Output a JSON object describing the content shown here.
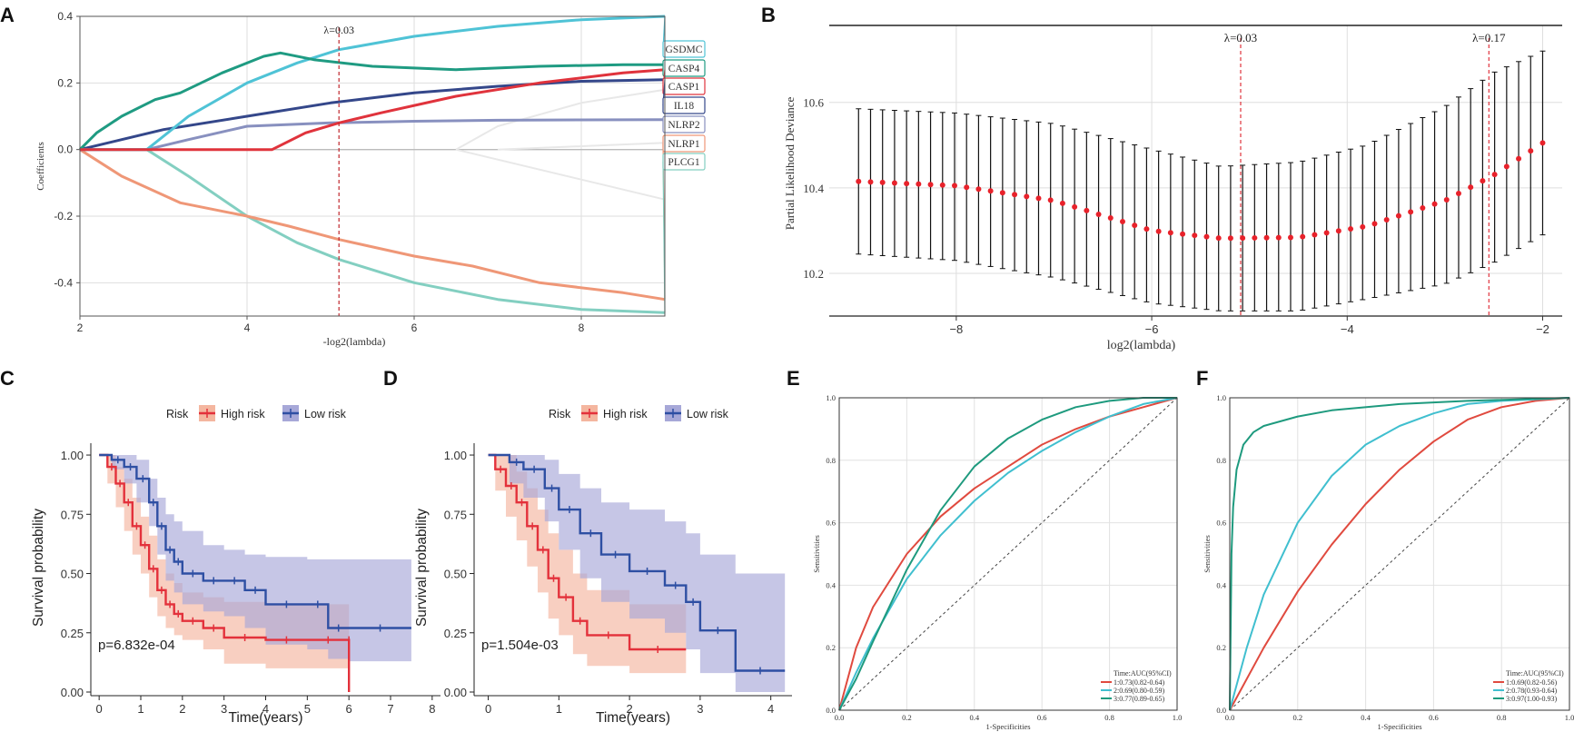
{
  "chart_data": [
    {
      "panel": "A",
      "type": "line",
      "title": "",
      "xlabel": "-log2(lambda)",
      "ylabel": "Coefficients",
      "xlim": [
        2,
        9
      ],
      "ylim": [
        -0.5,
        0.4
      ],
      "xticks": [
        "2",
        "4",
        "6",
        "8"
      ],
      "yticks": [
        "0.4",
        "0.2",
        "0.0",
        "-0.2",
        "-0.4"
      ],
      "vline": {
        "x": 5.1,
        "label": "λ=0.03"
      },
      "series": [
        {
          "name": "GSDMC",
          "color": "#4fc3d6",
          "x": [
            2,
            2.8,
            3.3,
            4.0,
            4.6,
            5.1,
            6.0,
            7.0,
            8.0,
            9.0
          ],
          "values": [
            0.0,
            0.0,
            0.1,
            0.2,
            0.26,
            0.3,
            0.34,
            0.37,
            0.39,
            0.4
          ]
        },
        {
          "name": "CASP4",
          "color": "#1f9b82",
          "x": [
            2,
            2.2,
            2.5,
            2.9,
            3.2,
            3.7,
            4.2,
            4.4,
            4.8,
            5.5,
            6.5,
            7.5,
            8.5,
            9.0
          ],
          "values": [
            0.0,
            0.05,
            0.1,
            0.15,
            0.17,
            0.23,
            0.28,
            0.29,
            0.27,
            0.25,
            0.24,
            0.25,
            0.255,
            0.255
          ]
        },
        {
          "name": "CASP1",
          "color": "#e0333c",
          "x": [
            2,
            3.0,
            4.0,
            4.3,
            4.7,
            5.1,
            5.6,
            6.5,
            7.5,
            8.5,
            9.0
          ],
          "values": [
            0.0,
            0.0,
            0.0,
            0.0,
            0.05,
            0.08,
            0.11,
            0.16,
            0.2,
            0.23,
            0.24
          ]
        },
        {
          "name": "IL18",
          "color": "#34478a",
          "x": [
            2,
            2.5,
            3.0,
            4.0,
            5.0,
            6.0,
            7.0,
            8.0,
            9.0
          ],
          "values": [
            0.0,
            0.03,
            0.06,
            0.1,
            0.14,
            0.17,
            0.19,
            0.205,
            0.21
          ]
        },
        {
          "name": "NLRP2",
          "color": "#8890bf",
          "x": [
            2,
            2.8,
            3.3,
            4.0,
            5.0,
            6.0,
            7.0,
            8.0,
            9.0
          ],
          "values": [
            0.0,
            0.0,
            0.03,
            0.07,
            0.08,
            0.085,
            0.088,
            0.089,
            0.09
          ]
        },
        {
          "name": "NLRP1",
          "color": "#ef9777",
          "x": [
            2,
            2.5,
            3.2,
            4.0,
            4.5,
            5.1,
            6.0,
            6.7,
            7.5,
            8.5,
            9.0
          ],
          "values": [
            0.0,
            -0.08,
            -0.16,
            -0.2,
            -0.23,
            -0.27,
            -0.32,
            -0.35,
            -0.4,
            -0.43,
            -0.45
          ]
        },
        {
          "name": "PLCG1",
          "color": "#83cfc1",
          "x": [
            2,
            2.8,
            3.3,
            4.0,
            4.6,
            5.1,
            6.0,
            7.0,
            8.0,
            9.0
          ],
          "values": [
            0.0,
            0.0,
            -0.08,
            -0.2,
            -0.28,
            -0.33,
            -0.4,
            -0.45,
            -0.48,
            -0.49
          ]
        },
        {
          "name": "",
          "color": "#e8e8e8",
          "x": [
            6.5,
            7.0,
            8.0,
            9.0
          ],
          "values": [
            0.0,
            0.07,
            0.14,
            0.18
          ]
        },
        {
          "name": "",
          "color": "#e8e8e8",
          "x": [
            6.5,
            7.0,
            8.0,
            9.0
          ],
          "values": [
            0.0,
            -0.03,
            -0.09,
            -0.15
          ]
        },
        {
          "name": "",
          "color": "#e8e8e8",
          "x": [
            7.0,
            8.0,
            9.0
          ],
          "values": [
            0.0,
            0.01,
            0.02
          ]
        }
      ],
      "labels": [
        {
          "text": "GSDMC",
          "color": "#4fc3d6"
        },
        {
          "text": "CASP4",
          "color": "#1f9b82"
        },
        {
          "text": "CASP1",
          "color": "#e0333c"
        },
        {
          "text": "IL18",
          "color": "#34478a"
        },
        {
          "text": "NLRP2",
          "color": "#8890bf"
        },
        {
          "text": "NLRP1",
          "color": "#ef9777"
        },
        {
          "text": "PLCG1",
          "color": "#83cfc1"
        }
      ]
    },
    {
      "panel": "B",
      "type": "scatter",
      "title": "",
      "xlabel": "log2(lambda)",
      "ylabel": "Partial Likelihood Deviance",
      "xlim": [
        -9.3,
        -1.8
      ],
      "ylim": [
        10.1,
        10.78
      ],
      "xticks": [
        "−8",
        "−6",
        "−4",
        "−2"
      ],
      "yticks": [
        "10.6",
        "10.4",
        "10.2"
      ],
      "vlines": [
        {
          "x": -5.09,
          "label": "λ=0.03"
        },
        {
          "x": -2.55,
          "label": "λ=0.17"
        }
      ],
      "x_start": -9.0,
      "x_end": -2.0,
      "point_count": 58,
      "note": "Mean deviance with error bars (upper / lower bounds) along a grid of 58 lambda values",
      "mean_anchor": {
        "x": [
          -9.0,
          -8.0,
          -7.0,
          -6.0,
          -5.3,
          -4.5,
          -3.8,
          -3.0,
          -2.5,
          -2.0
        ],
        "values": [
          10.415,
          10.405,
          10.37,
          10.3,
          10.282,
          10.284,
          10.31,
          10.37,
          10.43,
          10.505
        ]
      },
      "upper_anchor": {
        "x": [
          -9.0,
          -8.0,
          -7.0,
          -6.0,
          -5.3,
          -4.5,
          -3.8,
          -3.0,
          -2.5,
          -2.0
        ],
        "values": [
          10.585,
          10.575,
          10.55,
          10.49,
          10.45,
          10.46,
          10.5,
          10.59,
          10.67,
          10.72
        ]
      },
      "lower_anchor": {
        "x": [
          -9.0,
          -8.0,
          -7.0,
          -6.0,
          -5.3,
          -4.5,
          -3.8,
          -3.0,
          -2.5,
          -2.0
        ],
        "values": [
          10.245,
          10.23,
          10.19,
          10.13,
          10.112,
          10.112,
          10.14,
          10.175,
          10.225,
          10.29
        ]
      }
    },
    {
      "panel": "C",
      "type": "line",
      "title": "",
      "xlabel": "Time(years)",
      "ylabel": "Survival probability",
      "xlim": [
        -0.2,
        8.2
      ],
      "ylim": [
        0,
        1.05
      ],
      "xticks": [
        "0",
        "1",
        "2",
        "3",
        "4",
        "5",
        "6",
        "7",
        "8"
      ],
      "yticks": [
        "1.00",
        "0.75",
        "0.50",
        "0.25",
        "0.00"
      ],
      "legend_title": "Risk",
      "legend": [
        "High risk",
        "Low risk"
      ],
      "pvalue": "p=6.832e-04",
      "series": [
        {
          "name": "High risk",
          "color": "#e3313b",
          "band": "#f4b69f",
          "x": [
            0,
            0.2,
            0.4,
            0.6,
            0.8,
            1.0,
            1.2,
            1.4,
            1.6,
            1.8,
            2.0,
            2.5,
            3.0,
            4.0,
            5.0,
            6.0,
            6.0
          ],
          "values": [
            1.0,
            0.95,
            0.88,
            0.8,
            0.7,
            0.62,
            0.52,
            0.43,
            0.37,
            0.33,
            0.3,
            0.27,
            0.23,
            0.22,
            0.22,
            0.22,
            0.0
          ],
          "upper": [
            1.0,
            1.0,
            0.95,
            0.9,
            0.82,
            0.74,
            0.66,
            0.56,
            0.5,
            0.46,
            0.42,
            0.4,
            0.38,
            0.37,
            0.37,
            0.3,
            0.3
          ],
          "lower": [
            1.0,
            0.88,
            0.78,
            0.68,
            0.58,
            0.5,
            0.4,
            0.32,
            0.27,
            0.24,
            0.22,
            0.18,
            0.12,
            0.1,
            0.1,
            0.08,
            0.0
          ]
        },
        {
          "name": "Low risk",
          "color": "#2e4fa3",
          "band": "#a7a8d8",
          "x": [
            0,
            0.3,
            0.6,
            0.9,
            1.2,
            1.4,
            1.6,
            1.8,
            2.0,
            2.5,
            3.0,
            3.5,
            4.0,
            5.0,
            5.5,
            6.0,
            7.5
          ],
          "values": [
            1.0,
            0.98,
            0.95,
            0.9,
            0.8,
            0.7,
            0.6,
            0.55,
            0.5,
            0.47,
            0.47,
            0.43,
            0.37,
            0.37,
            0.27,
            0.27,
            0.27
          ],
          "upper": [
            1.0,
            1.0,
            1.0,
            0.98,
            0.9,
            0.82,
            0.75,
            0.72,
            0.68,
            0.62,
            0.6,
            0.58,
            0.57,
            0.56,
            0.56,
            0.56,
            0.56
          ],
          "lower": [
            1.0,
            0.94,
            0.88,
            0.8,
            0.7,
            0.58,
            0.47,
            0.42,
            0.37,
            0.34,
            0.32,
            0.27,
            0.2,
            0.18,
            0.14,
            0.13,
            0.13
          ]
        }
      ]
    },
    {
      "panel": "D",
      "type": "line",
      "title": "",
      "xlabel": "Time(years)",
      "ylabel": "Survival probability",
      "xlim": [
        -0.2,
        4.3
      ],
      "ylim": [
        0,
        1.05
      ],
      "xticks": [
        "0",
        "1",
        "2",
        "3",
        "4"
      ],
      "yticks": [
        "1.00",
        "0.75",
        "0.50",
        "0.25",
        "0.00"
      ],
      "legend_title": "Risk",
      "legend": [
        "High risk",
        "Low risk"
      ],
      "pvalue": "p=1.504e-03",
      "series": [
        {
          "name": "High risk",
          "color": "#e3313b",
          "band": "#f4b69f",
          "x": [
            0,
            0.1,
            0.25,
            0.4,
            0.55,
            0.7,
            0.85,
            1.0,
            1.2,
            1.4,
            2.0,
            2.8
          ],
          "values": [
            1.0,
            0.94,
            0.87,
            0.8,
            0.7,
            0.6,
            0.48,
            0.4,
            0.3,
            0.24,
            0.18,
            0.18
          ],
          "upper": [
            1.0,
            1.0,
            1.0,
            0.93,
            0.86,
            0.77,
            0.67,
            0.6,
            0.5,
            0.43,
            0.37,
            0.37
          ],
          "lower": [
            1.0,
            0.85,
            0.74,
            0.64,
            0.53,
            0.42,
            0.31,
            0.24,
            0.16,
            0.11,
            0.08,
            0.08
          ]
        },
        {
          "name": "Low risk",
          "color": "#2e4fa3",
          "band": "#a7a8d8",
          "x": [
            0,
            0.3,
            0.5,
            0.8,
            1.0,
            1.3,
            1.6,
            2.0,
            2.5,
            2.8,
            3.0,
            3.5,
            4.2
          ],
          "values": [
            1.0,
            0.97,
            0.94,
            0.86,
            0.77,
            0.67,
            0.58,
            0.51,
            0.45,
            0.38,
            0.26,
            0.09,
            0.09
          ],
          "upper": [
            1.0,
            1.0,
            1.0,
            0.98,
            0.92,
            0.86,
            0.8,
            0.77,
            0.72,
            0.67,
            0.58,
            0.5,
            0.45
          ],
          "lower": [
            1.0,
            0.88,
            0.82,
            0.72,
            0.6,
            0.48,
            0.38,
            0.31,
            0.25,
            0.18,
            0.08,
            0.0,
            0.0
          ]
        }
      ]
    },
    {
      "panel": "E",
      "type": "line",
      "title": "",
      "xlabel": "1-Specificities",
      "ylabel": "Sensitivities",
      "xlim": [
        0,
        1
      ],
      "ylim": [
        0,
        1
      ],
      "xticks": [
        "0.0",
        "0.2",
        "0.4",
        "0.6",
        "0.8",
        "1.0"
      ],
      "yticks": [
        "1.0",
        "0.8",
        "0.6",
        "0.4",
        "0.2",
        "0.0"
      ],
      "legend_title": "Time:AUC(95%CI)",
      "legend": [
        "1:0.73(0.82-0.64)",
        "2:0.69(0.80-0.59)",
        "3:0.77(0.89-0.65)"
      ],
      "series": [
        {
          "name": "1:0.73(0.82-0.64)",
          "color": "#e04a3f",
          "x": [
            0,
            0.05,
            0.1,
            0.2,
            0.3,
            0.4,
            0.5,
            0.6,
            0.7,
            0.8,
            0.9,
            1.0
          ],
          "values": [
            0,
            0.2,
            0.33,
            0.5,
            0.62,
            0.71,
            0.78,
            0.85,
            0.9,
            0.94,
            0.97,
            1.0
          ]
        },
        {
          "name": "2:0.69(0.80-0.59)",
          "color": "#40bfcf",
          "x": [
            0,
            0.05,
            0.1,
            0.2,
            0.3,
            0.4,
            0.5,
            0.6,
            0.7,
            0.8,
            0.9,
            1.0
          ],
          "values": [
            0,
            0.12,
            0.23,
            0.42,
            0.56,
            0.67,
            0.76,
            0.83,
            0.89,
            0.94,
            0.98,
            1.0
          ]
        },
        {
          "name": "3:0.77(0.89-0.65)",
          "color": "#1e9a7e",
          "x": [
            0,
            0.05,
            0.1,
            0.2,
            0.3,
            0.4,
            0.5,
            0.6,
            0.7,
            0.8,
            0.9,
            1.0
          ],
          "values": [
            0,
            0.1,
            0.22,
            0.45,
            0.64,
            0.78,
            0.87,
            0.93,
            0.97,
            0.99,
            1.0,
            1.0
          ]
        }
      ]
    },
    {
      "panel": "F",
      "type": "line",
      "title": "",
      "xlabel": "1-Specificities",
      "ylabel": "Sensitivities",
      "xlim": [
        0,
        1
      ],
      "ylim": [
        0,
        1
      ],
      "xticks": [
        "0.0",
        "0.2",
        "0.4",
        "0.6",
        "0.8",
        "1.0"
      ],
      "yticks": [
        "1.0",
        "0.8",
        "0.6",
        "0.4",
        "0.2",
        "0.0"
      ],
      "legend_title": "Time:AUC(95%CI)",
      "legend": [
        "1:0.69(0.82-0.56)",
        "2:0.78(0.93-0.64)",
        "3:0.97(1.00-0.93)"
      ],
      "series": [
        {
          "name": "1:0.69(0.82-0.56)",
          "color": "#e04a3f",
          "x": [
            0,
            0.1,
            0.2,
            0.3,
            0.4,
            0.5,
            0.6,
            0.7,
            0.8,
            0.9,
            1.0
          ],
          "values": [
            0,
            0.2,
            0.38,
            0.53,
            0.66,
            0.77,
            0.86,
            0.93,
            0.97,
            0.99,
            1.0
          ]
        },
        {
          "name": "2:0.78(0.93-0.64)",
          "color": "#40bfcf",
          "x": [
            0,
            0.05,
            0.1,
            0.2,
            0.3,
            0.4,
            0.5,
            0.6,
            0.7,
            0.8,
            1.0
          ],
          "values": [
            0,
            0.2,
            0.37,
            0.6,
            0.75,
            0.85,
            0.91,
            0.95,
            0.98,
            0.99,
            1.0
          ]
        },
        {
          "name": "3:0.97(1.00-0.93)",
          "color": "#1e9a7e",
          "x": [
            0,
            0.005,
            0.01,
            0.02,
            0.04,
            0.07,
            0.1,
            0.2,
            0.3,
            0.5,
            0.7,
            1.0
          ],
          "values": [
            0,
            0.5,
            0.65,
            0.77,
            0.85,
            0.89,
            0.91,
            0.94,
            0.96,
            0.98,
            0.99,
            1.0
          ]
        }
      ]
    }
  ]
}
